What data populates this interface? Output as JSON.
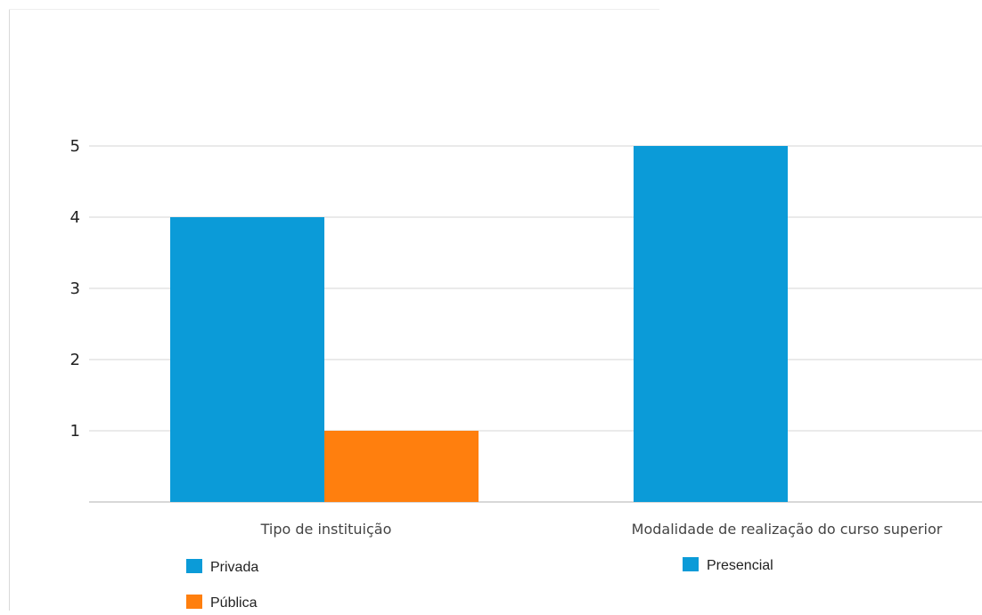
{
  "chart_data": {
    "type": "bar",
    "title": "",
    "xlabel": "",
    "ylabel": "",
    "ylim": [
      0,
      5
    ],
    "yticks": [
      1,
      2,
      3,
      4,
      5
    ],
    "grid": true,
    "groups": [
      {
        "category": "Tipo de instituição",
        "bars": [
          {
            "name": "Privada",
            "value": 4,
            "color": "#0b9bd8"
          },
          {
            "name": "Pública",
            "value": 1,
            "color": "#ff7f0e"
          }
        ]
      },
      {
        "category": "Modalidade de realização do curso superior",
        "bars": [
          {
            "name": "Presencial",
            "value": 5,
            "color": "#0b9bd8"
          }
        ]
      }
    ],
    "legend_placement": "below each category"
  }
}
